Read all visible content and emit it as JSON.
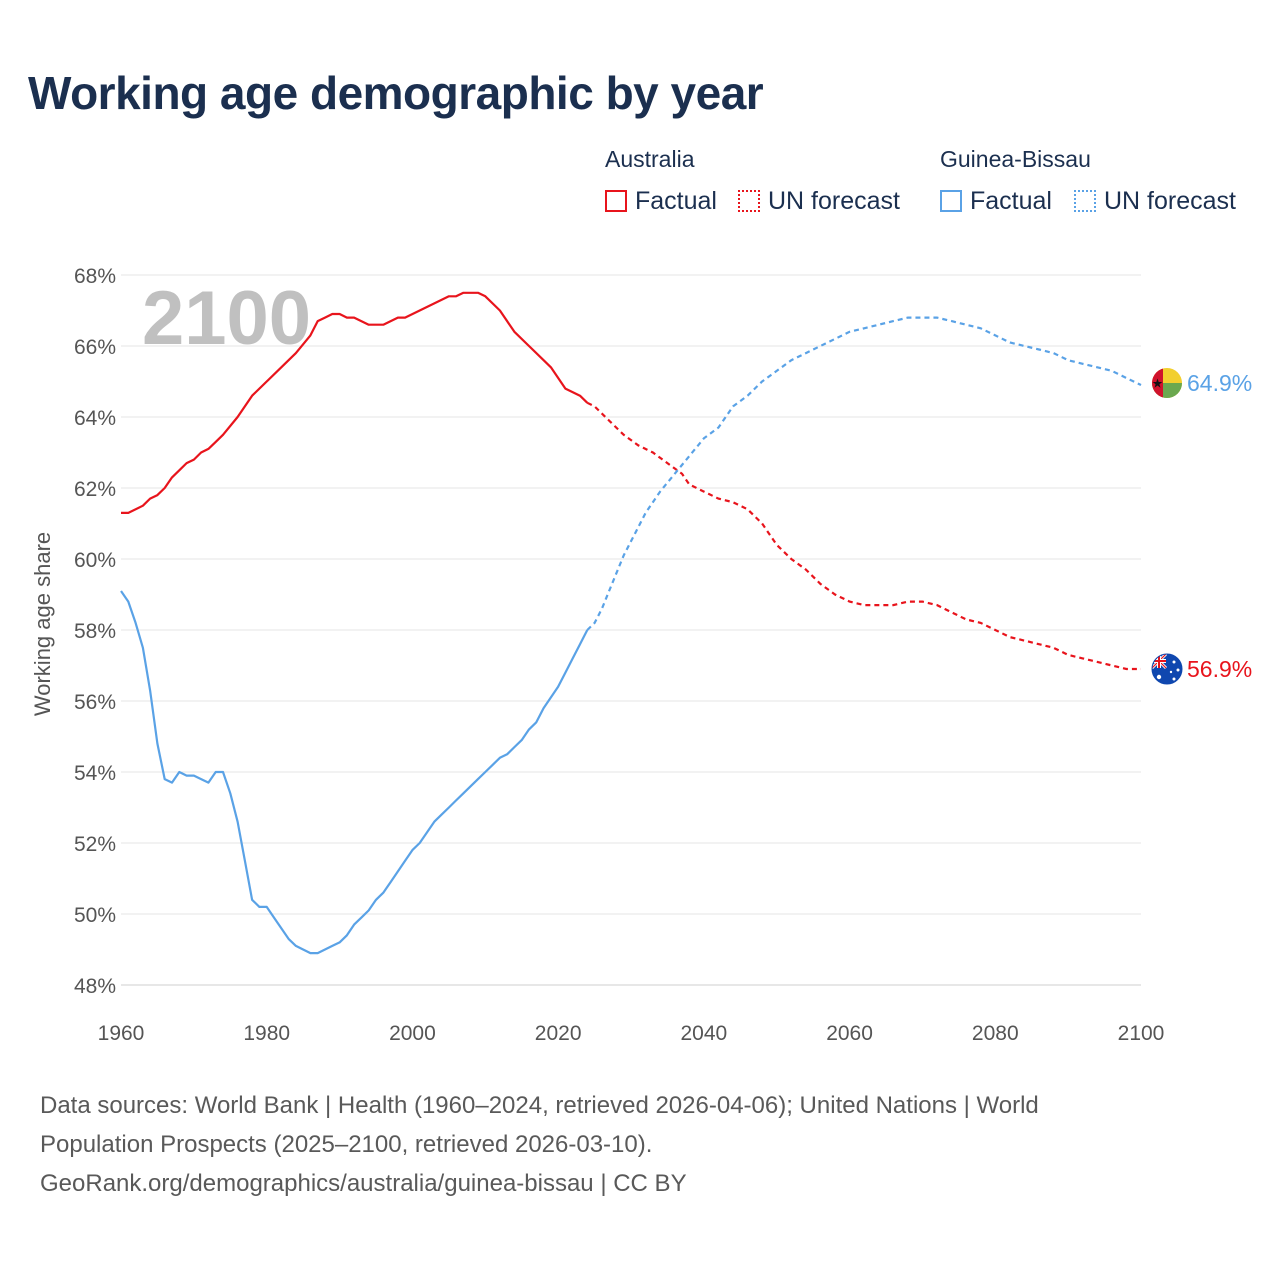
{
  "title": "Working age demographic by year",
  "legend": {
    "groups": [
      {
        "country": "Australia",
        "factual_label": "Factual",
        "forecast_label": "UN forecast",
        "color": "#e8141c"
      },
      {
        "country": "Guinea-Bissau",
        "factual_label": "Factual",
        "forecast_label": "UN forecast",
        "color": "#5aa2e6"
      }
    ]
  },
  "chart_data": {
    "type": "line",
    "title": "Working age demographic by year",
    "xlabel": "",
    "ylabel": "Working age share",
    "xlim": [
      1960,
      2100
    ],
    "ylim": [
      48,
      68
    ],
    "x_ticks": [
      1960,
      1980,
      2000,
      2020,
      2040,
      2060,
      2080,
      2100
    ],
    "y_ticks": [
      48,
      50,
      52,
      54,
      56,
      58,
      60,
      62,
      64,
      66,
      68
    ],
    "y_tick_labels": [
      "48%",
      "50%",
      "52%",
      "54%",
      "56%",
      "58%",
      "60%",
      "62%",
      "64%",
      "66%",
      "68%"
    ],
    "x_tick_labels": [
      "1960",
      "1980",
      "2000",
      "2020",
      "2040",
      "2060",
      "2080",
      "2100"
    ],
    "grid": true,
    "year_label": "2100",
    "factual_range": [
      1960,
      2024
    ],
    "forecast_range": [
      2025,
      2100
    ],
    "series": [
      {
        "name": "Australia",
        "color": "#e8141c",
        "end_label": "56.9%",
        "flag_icon": "australia-flag-icon",
        "points": [
          [
            1960,
            61.3
          ],
          [
            1961,
            61.3
          ],
          [
            1963,
            61.5
          ],
          [
            1964,
            61.7
          ],
          [
            1965,
            61.8
          ],
          [
            1966,
            62.0
          ],
          [
            1967,
            62.3
          ],
          [
            1968,
            62.5
          ],
          [
            1969,
            62.7
          ],
          [
            1970,
            62.8
          ],
          [
            1971,
            63.0
          ],
          [
            1972,
            63.1
          ],
          [
            1973,
            63.3
          ],
          [
            1974,
            63.5
          ],
          [
            1976,
            64.0
          ],
          [
            1978,
            64.6
          ],
          [
            1980,
            65.0
          ],
          [
            1982,
            65.4
          ],
          [
            1984,
            65.8
          ],
          [
            1986,
            66.3
          ],
          [
            1987,
            66.7
          ],
          [
            1988,
            66.8
          ],
          [
            1989,
            66.9
          ],
          [
            1990,
            66.9
          ],
          [
            1991,
            66.8
          ],
          [
            1992,
            66.8
          ],
          [
            1994,
            66.6
          ],
          [
            1996,
            66.6
          ],
          [
            1998,
            66.8
          ],
          [
            1999,
            66.8
          ],
          [
            2001,
            67.0
          ],
          [
            2003,
            67.2
          ],
          [
            2005,
            67.4
          ],
          [
            2006,
            67.4
          ],
          [
            2007,
            67.5
          ],
          [
            2009,
            67.5
          ],
          [
            2010,
            67.4
          ],
          [
            2012,
            67.0
          ],
          [
            2014,
            66.4
          ],
          [
            2016,
            66.0
          ],
          [
            2018,
            65.6
          ],
          [
            2019,
            65.4
          ],
          [
            2021,
            64.8
          ],
          [
            2023,
            64.6
          ],
          [
            2024,
            64.4
          ],
          [
            2025,
            64.3
          ],
          [
            2027,
            63.9
          ],
          [
            2029,
            63.5
          ],
          [
            2031,
            63.2
          ],
          [
            2033,
            63.0
          ],
          [
            2035,
            62.7
          ],
          [
            2037,
            62.4
          ],
          [
            2038,
            62.1
          ],
          [
            2040,
            61.9
          ],
          [
            2042,
            61.7
          ],
          [
            2044,
            61.6
          ],
          [
            2046,
            61.4
          ],
          [
            2048,
            61.0
          ],
          [
            2050,
            60.4
          ],
          [
            2052,
            60.0
          ],
          [
            2054,
            59.7
          ],
          [
            2056,
            59.3
          ],
          [
            2058,
            59.0
          ],
          [
            2060,
            58.8
          ],
          [
            2062,
            58.7
          ],
          [
            2064,
            58.7
          ],
          [
            2066,
            58.7
          ],
          [
            2068,
            58.8
          ],
          [
            2070,
            58.8
          ],
          [
            2072,
            58.7
          ],
          [
            2074,
            58.5
          ],
          [
            2076,
            58.3
          ],
          [
            2078,
            58.2
          ],
          [
            2080,
            58.0
          ],
          [
            2082,
            57.8
          ],
          [
            2084,
            57.7
          ],
          [
            2086,
            57.6
          ],
          [
            2088,
            57.5
          ],
          [
            2090,
            57.3
          ],
          [
            2092,
            57.2
          ],
          [
            2094,
            57.1
          ],
          [
            2096,
            57.0
          ],
          [
            2098,
            56.9
          ],
          [
            2100,
            56.9
          ]
        ]
      },
      {
        "name": "Guinea-Bissau",
        "color": "#5aa2e6",
        "end_label": "64.9%",
        "flag_icon": "guinea-bissau-flag-icon",
        "points": [
          [
            1960,
            59.1
          ],
          [
            1961,
            58.8
          ],
          [
            1962,
            58.2
          ],
          [
            1963,
            57.5
          ],
          [
            1964,
            56.3
          ],
          [
            1965,
            54.8
          ],
          [
            1966,
            53.8
          ],
          [
            1967,
            53.7
          ],
          [
            1968,
            54.0
          ],
          [
            1969,
            53.9
          ],
          [
            1970,
            53.9
          ],
          [
            1971,
            53.8
          ],
          [
            1972,
            53.7
          ],
          [
            1973,
            54.0
          ],
          [
            1974,
            54.0
          ],
          [
            1975,
            53.4
          ],
          [
            1976,
            52.6
          ],
          [
            1977,
            51.5
          ],
          [
            1978,
            50.4
          ],
          [
            1979,
            50.2
          ],
          [
            1980,
            50.2
          ],
          [
            1981,
            49.9
          ],
          [
            1982,
            49.6
          ],
          [
            1983,
            49.3
          ],
          [
            1984,
            49.1
          ],
          [
            1985,
            49.0
          ],
          [
            1986,
            48.9
          ],
          [
            1987,
            48.9
          ],
          [
            1988,
            49.0
          ],
          [
            1989,
            49.1
          ],
          [
            1990,
            49.2
          ],
          [
            1991,
            49.4
          ],
          [
            1992,
            49.7
          ],
          [
            1993,
            49.9
          ],
          [
            1994,
            50.1
          ],
          [
            1995,
            50.4
          ],
          [
            1996,
            50.6
          ],
          [
            1997,
            50.9
          ],
          [
            1998,
            51.2
          ],
          [
            1999,
            51.5
          ],
          [
            2000,
            51.8
          ],
          [
            2001,
            52.0
          ],
          [
            2002,
            52.3
          ],
          [
            2003,
            52.6
          ],
          [
            2004,
            52.8
          ],
          [
            2005,
            53.0
          ],
          [
            2006,
            53.2
          ],
          [
            2007,
            53.4
          ],
          [
            2008,
            53.6
          ],
          [
            2009,
            53.8
          ],
          [
            2010,
            54.0
          ],
          [
            2011,
            54.2
          ],
          [
            2012,
            54.4
          ],
          [
            2013,
            54.5
          ],
          [
            2014,
            54.7
          ],
          [
            2015,
            54.9
          ],
          [
            2016,
            55.2
          ],
          [
            2017,
            55.4
          ],
          [
            2018,
            55.8
          ],
          [
            2019,
            56.1
          ],
          [
            2020,
            56.4
          ],
          [
            2021,
            56.8
          ],
          [
            2022,
            57.2
          ],
          [
            2023,
            57.6
          ],
          [
            2024,
            58.0
          ],
          [
            2025,
            58.2
          ],
          [
            2026,
            58.6
          ],
          [
            2027,
            59.1
          ],
          [
            2028,
            59.6
          ],
          [
            2029,
            60.1
          ],
          [
            2030,
            60.5
          ],
          [
            2031,
            60.9
          ],
          [
            2032,
            61.3
          ],
          [
            2034,
            61.9
          ],
          [
            2036,
            62.4
          ],
          [
            2038,
            62.9
          ],
          [
            2040,
            63.4
          ],
          [
            2042,
            63.7
          ],
          [
            2044,
            64.3
          ],
          [
            2046,
            64.6
          ],
          [
            2048,
            65.0
          ],
          [
            2050,
            65.3
          ],
          [
            2052,
            65.6
          ],
          [
            2054,
            65.8
          ],
          [
            2056,
            66.0
          ],
          [
            2058,
            66.2
          ],
          [
            2060,
            66.4
          ],
          [
            2062,
            66.5
          ],
          [
            2064,
            66.6
          ],
          [
            2066,
            66.7
          ],
          [
            2068,
            66.8
          ],
          [
            2070,
            66.8
          ],
          [
            2072,
            66.8
          ],
          [
            2074,
            66.7
          ],
          [
            2076,
            66.6
          ],
          [
            2078,
            66.5
          ],
          [
            2080,
            66.3
          ],
          [
            2082,
            66.1
          ],
          [
            2084,
            66.0
          ],
          [
            2086,
            65.9
          ],
          [
            2088,
            65.8
          ],
          [
            2090,
            65.6
          ],
          [
            2092,
            65.5
          ],
          [
            2094,
            65.4
          ],
          [
            2096,
            65.3
          ],
          [
            2098,
            65.1
          ],
          [
            2100,
            64.9
          ]
        ]
      }
    ]
  },
  "source": {
    "line1": "Data sources: World Bank | Health (1960–2024, retrieved 2026-04-06); United Nations | World",
    "line2": "Population Prospects (2025–2100, retrieved 2026-03-10).",
    "line3": "GeoRank.org/demographics/australia/guinea-bissau | CC BY"
  }
}
